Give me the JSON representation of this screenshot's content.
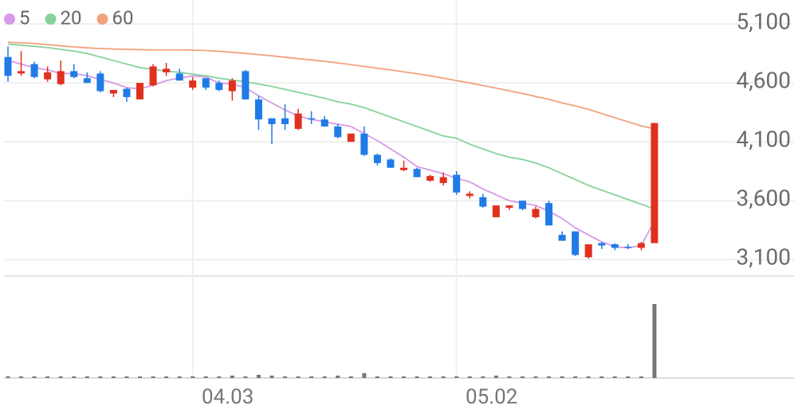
{
  "chart_data": {
    "type": "candlestick",
    "categories": [
      null,
      null,
      null,
      null,
      null,
      null,
      null,
      null,
      null,
      null,
      null,
      null,
      null,
      null,
      "04.03",
      null,
      null,
      null,
      null,
      null,
      null,
      null,
      null,
      null,
      null,
      null,
      null,
      null,
      null,
      null,
      null,
      null,
      null,
      null,
      "05.02",
      null,
      null,
      null,
      null,
      null,
      null,
      null,
      null,
      null,
      null,
      null,
      null,
      null,
      null,
      null
    ],
    "open": [
      4820,
      4680,
      4760,
      4630,
      4590,
      4700,
      4640,
      4680,
      4510,
      4550,
      4460,
      4580,
      4690,
      4680,
      4560,
      4640,
      4600,
      4530,
      4700,
      4460,
      4300,
      4300,
      4210,
      4300,
      4290,
      4230,
      4100,
      4170,
      3990,
      3950,
      3860,
      3870,
      3770,
      3750,
      3820,
      3640,
      3630,
      3460,
      3540,
      3600,
      3460,
      3580,
      3310,
      3340,
      3120,
      3240,
      3230,
      3210,
      3200,
      3240
    ],
    "high": [
      4910,
      4870,
      4780,
      4740,
      4790,
      4760,
      4690,
      4700,
      4540,
      4560,
      4580,
      4760,
      4770,
      4720,
      4650,
      4640,
      4620,
      4640,
      4710,
      4490,
      4300,
      4420,
      4380,
      4360,
      4320,
      4250,
      4160,
      4230,
      4000,
      3960,
      3940,
      3880,
      3820,
      3840,
      3850,
      3680,
      3660,
      3560,
      3560,
      3600,
      3550,
      3600,
      3340,
      3340,
      3230,
      3250,
      3240,
      3230,
      3250,
      4260
    ],
    "low": [
      4610,
      4660,
      4640,
      4610,
      4580,
      4640,
      4600,
      4520,
      4480,
      4440,
      4460,
      4570,
      4660,
      4620,
      4540,
      4540,
      4530,
      4450,
      4460,
      4200,
      4080,
      4200,
      4200,
      4250,
      4230,
      4130,
      4100,
      3980,
      3900,
      3880,
      3850,
      3800,
      3760,
      3730,
      3650,
      3620,
      3540,
      3460,
      3520,
      3520,
      3450,
      3390,
      3260,
      3130,
      3110,
      3190,
      3180,
      3190,
      3180,
      3240
    ],
    "close": [
      4660,
      4700,
      4650,
      4690,
      4700,
      4650,
      4600,
      4530,
      4540,
      4480,
      4600,
      4740,
      4720,
      4620,
      4620,
      4560,
      4540,
      4620,
      4460,
      4290,
      4250,
      4250,
      4340,
      4290,
      4230,
      4140,
      4170,
      3990,
      3920,
      3880,
      3880,
      3800,
      3810,
      3800,
      3670,
      3660,
      3550,
      3560,
      3560,
      3530,
      3530,
      3390,
      3260,
      3140,
      3230,
      3220,
      3200,
      3200,
      3240,
      4260
    ],
    "volume": [
      2,
      2,
      2,
      2,
      2,
      2,
      2,
      2,
      2,
      2,
      2,
      2,
      2,
      2,
      2,
      2,
      2,
      3,
      2,
      4,
      3,
      2,
      2,
      2,
      2,
      3,
      2,
      6,
      2,
      2,
      2,
      2,
      2,
      2,
      2,
      2,
      2,
      3,
      2,
      2,
      2,
      2,
      2,
      2,
      2,
      2,
      2,
      2,
      2,
      93
    ],
    "series": [
      {
        "name": "5",
        "color": "#d79ae6",
        "values": [
          4790,
          4760,
          4730,
          4710,
          4680,
          4680,
          4660,
          4630,
          4600,
          4560,
          4550,
          4580,
          4620,
          4640,
          4660,
          4650,
          4600,
          4590,
          4560,
          4490,
          4430,
          4370,
          4320,
          4290,
          4270,
          4250,
          4230,
          4170,
          4110,
          4040,
          3970,
          3890,
          3860,
          3830,
          3790,
          3760,
          3700,
          3650,
          3600,
          3580,
          3560,
          3510,
          3450,
          3370,
          3310,
          3250,
          3210,
          3200,
          3220,
          3430
        ]
      },
      {
        "name": "20",
        "color": "#86d49b",
        "values": [
          4930,
          4920,
          4910,
          4900,
          4885,
          4870,
          4850,
          4820,
          4790,
          4760,
          4730,
          4715,
          4700,
          4690,
          4675,
          4660,
          4640,
          4625,
          4610,
          4590,
          4570,
          4545,
          4520,
          4495,
          4470,
          4440,
          4420,
          4390,
          4350,
          4310,
          4270,
          4230,
          4190,
          4150,
          4130,
          4080,
          4040,
          4000,
          3970,
          3950,
          3920,
          3880,
          3830,
          3780,
          3730,
          3690,
          3650,
          3610,
          3570,
          3530
        ]
      },
      {
        "name": "60",
        "color": "#f2a27c",
        "values": [
          4945,
          4940,
          4935,
          4925,
          4915,
          4905,
          4898,
          4892,
          4888,
          4885,
          4882,
          4880,
          4880,
          4880,
          4878,
          4875,
          4868,
          4860,
          4850,
          4840,
          4830,
          4818,
          4806,
          4795,
          4783,
          4770,
          4755,
          4740,
          4725,
          4710,
          4694,
          4678,
          4660,
          4640,
          4620,
          4600,
          4578,
          4556,
          4533,
          4510,
          4485,
          4460,
          4430,
          4405,
          4375,
          4340,
          4305,
          4270,
          4235,
          4210
        ]
      }
    ],
    "up_color": "#e0301e",
    "down_color": "#1f7be6",
    "ylim": [
      2960,
      5270
    ],
    "yticks": [
      {
        "value": 3100,
        "label": "3,100"
      },
      {
        "value": 3600,
        "label": "3,600"
      },
      {
        "value": 4100,
        "label": "4,100"
      },
      {
        "value": 4600,
        "label": "4,600"
      },
      {
        "value": 5100,
        "label": "5,100"
      }
    ],
    "grid": true
  }
}
